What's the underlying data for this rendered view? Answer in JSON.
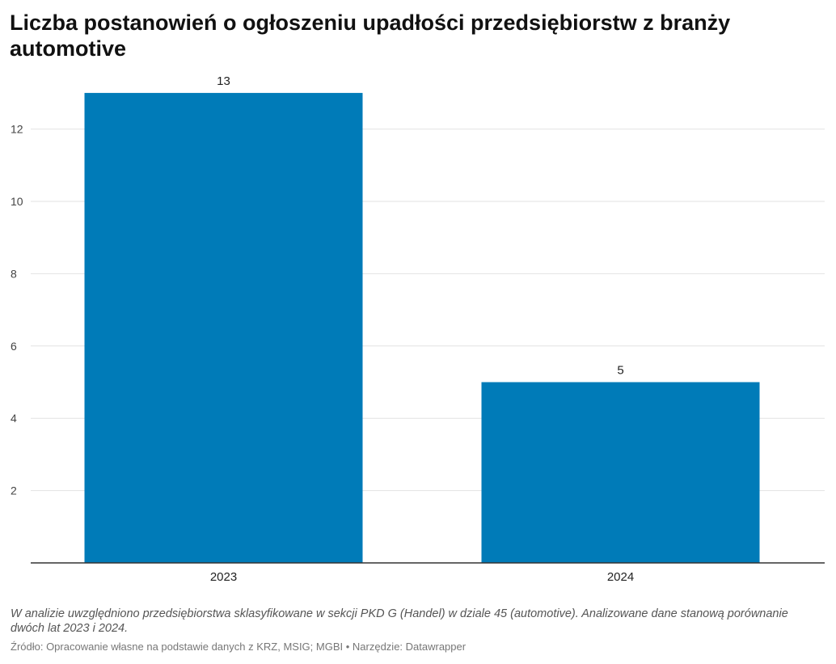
{
  "chart_data": {
    "type": "bar",
    "title": "Liczba postanowień o ogłoszeniu upadłości przedsiębiorstw z branży automotive",
    "categories": [
      "2023",
      "2024"
    ],
    "values": [
      13,
      5
    ],
    "data_labels": [
      "13",
      "5"
    ],
    "yticks": [
      2,
      4,
      6,
      8,
      10,
      12
    ],
    "ylim": [
      0,
      13.5
    ],
    "grid": true,
    "bar_color": "#007bb8",
    "xlabel": "",
    "ylabel": ""
  },
  "footer": {
    "note": "W analizie uwzględniono przedsiębiorstwa sklasyfikowane w sekcji PKD G (Handel) w dziale 45 (automotive). Analizowane dane stanową porównanie dwóch lat 2023 i 2024.",
    "source": "Źródło: Opracowanie własne na podstawie danych z KRZ, MSIG; MGBI • Narzędzie: Datawrapper"
  }
}
